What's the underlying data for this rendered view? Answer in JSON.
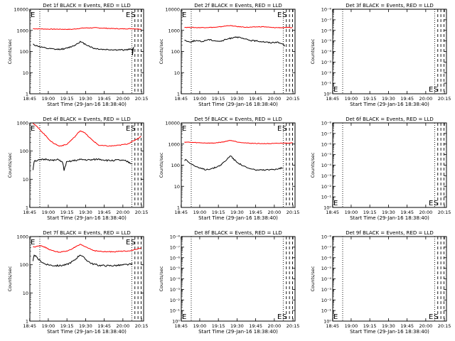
{
  "figure": {
    "xlabel": "Start Time (29-Jan-16 18:38:40)",
    "ylabel": "Counts/sec",
    "x_ticks": [
      "18:45",
      "19:00",
      "19:15",
      "19:30",
      "19:45",
      "20:00",
      "20:15"
    ],
    "colors": {
      "events": "#000000",
      "lld": "#ff0000"
    }
  },
  "chart_data": [
    {
      "type": "line",
      "title": "Det 1f BLACK = Events, RED = LLD",
      "scale": "log",
      "yticks": [
        "1",
        "10",
        "100",
        "1000",
        "10000"
      ],
      "ylim": [
        1,
        10000
      ],
      "xlim_min": [
        6.5,
        98
      ],
      "markers": {
        "E_at_min": 6.5,
        "S_at_min": 90,
        "dotted_min": [
          14.5,
          88.5
        ],
        "dashed_min": [
          91,
          93.5,
          96
        ]
      },
      "series": [
        {
          "color": "red",
          "points": [
            [
              9,
              1200
            ],
            [
              20,
              1150
            ],
            [
              40,
              1120
            ],
            [
              50,
              1300
            ],
            [
              60,
              1320
            ],
            [
              70,
              1240
            ],
            [
              80,
              1180
            ],
            [
              89,
              1200
            ],
            [
              96,
              1150
            ]
          ]
        },
        {
          "color": "black",
          "points": [
            [
              9,
              220
            ],
            [
              12,
              185
            ],
            [
              20,
              140
            ],
            [
              28,
              125
            ],
            [
              35,
              135
            ],
            [
              42,
              190
            ],
            [
              47,
              290
            ],
            [
              52,
              210
            ],
            [
              58,
              140
            ],
            [
              65,
              125
            ],
            [
              75,
              120
            ],
            [
              82,
              118
            ],
            [
              89,
              130
            ],
            [
              89,
              70
            ],
            [
              90,
              165
            ]
          ]
        }
      ]
    },
    {
      "type": "line",
      "title": "Det 2f BLACK = Events, RED = LLD",
      "scale": "log",
      "yticks": [
        "1",
        "10",
        "100",
        "1000",
        "10000"
      ],
      "ylim": [
        1,
        10000
      ],
      "xlim_min": [
        6.5,
        98
      ],
      "markers": {
        "E_at_min": 6.5,
        "S_at_min": 90,
        "dotted_min": [
          14.5,
          88.5
        ],
        "dashed_min": [
          91,
          93.5,
          96
        ]
      },
      "series": [
        {
          "color": "red",
          "points": [
            [
              9,
              1400
            ],
            [
              20,
              1350
            ],
            [
              35,
              1400
            ],
            [
              45,
              1700
            ],
            [
              52,
              1500
            ],
            [
              60,
              1400
            ],
            [
              72,
              1500
            ],
            [
              80,
              1350
            ],
            [
              89,
              1350
            ],
            [
              96,
              1350
            ]
          ]
        },
        {
          "color": "black",
          "points": [
            [
              9,
              350
            ],
            [
              13,
              280
            ],
            [
              18,
              330
            ],
            [
              23,
              290
            ],
            [
              28,
              370
            ],
            [
              33,
              330
            ],
            [
              38,
              300
            ],
            [
              43,
              380
            ],
            [
              46,
              420
            ],
            [
              50,
              500
            ],
            [
              54,
              440
            ],
            [
              58,
              380
            ],
            [
              63,
              330
            ],
            [
              68,
              310
            ],
            [
              73,
              290
            ],
            [
              78,
              260
            ],
            [
              83,
              280
            ],
            [
              88,
              230
            ],
            [
              90,
              180
            ]
          ]
        }
      ]
    },
    {
      "type": "line",
      "title": "Det 3f BLACK = Events, RED = LLD",
      "scale": "log",
      "yticks": [
        "10⁰",
        "10⁻¹",
        "10⁻²",
        "10⁻³",
        "10⁻⁴",
        "10⁻⁵",
        "10⁻⁶",
        "10⁻⁷",
        "10⁻⁸"
      ],
      "ylim": [
        1e-08,
        1
      ],
      "xlim_min": [
        6.5,
        98
      ],
      "markers": {
        "E_at_min": 6.5,
        "S_at_min": 90,
        "dotted_min": [
          14.5,
          88.5
        ],
        "dashed_min": [
          91,
          93.5,
          96
        ]
      },
      "series": []
    },
    {
      "type": "line",
      "title": "Det 4f BLACK = Events, RED = LLD",
      "scale": "log",
      "yticks": [
        "1",
        "10",
        "100",
        "1000"
      ],
      "ylim": [
        1,
        1000
      ],
      "xlim_min": [
        6.5,
        98
      ],
      "markers": {
        "E_at_min": 6.5,
        "S_at_min": 90,
        "dotted_min": [
          14.5,
          88.5
        ],
        "dashed_min": [
          91,
          93.5,
          96
        ]
      },
      "series": [
        {
          "color": "red",
          "points": [
            [
              9,
              1000
            ],
            [
              12,
              750
            ],
            [
              18,
              400
            ],
            [
              24,
              210
            ],
            [
              30,
              150
            ],
            [
              36,
              170
            ],
            [
              42,
              300
            ],
            [
              47,
              530
            ],
            [
              50,
              470
            ],
            [
              56,
              260
            ],
            [
              62,
              160
            ],
            [
              70,
              150
            ],
            [
              78,
              160
            ],
            [
              85,
              180
            ],
            [
              90,
              230
            ],
            [
              96,
              330
            ]
          ]
        },
        {
          "color": "black",
          "points": [
            [
              9,
              22
            ],
            [
              10,
              45
            ],
            [
              15,
              48
            ],
            [
              20,
              52
            ],
            [
              25,
              46
            ],
            [
              30,
              50
            ],
            [
              33,
              38
            ],
            [
              34,
              21
            ],
            [
              36,
              40
            ],
            [
              42,
              46
            ],
            [
              48,
              50
            ],
            [
              55,
              48
            ],
            [
              62,
              52
            ],
            [
              70,
              46
            ],
            [
              78,
              48
            ],
            [
              84,
              44
            ],
            [
              89,
              35
            ]
          ]
        }
      ]
    },
    {
      "type": "line",
      "title": "Det 5f BLACK = Events, RED = LLD",
      "scale": "log",
      "yticks": [
        "1",
        "10",
        "100",
        "1000",
        "10000"
      ],
      "ylim": [
        1,
        10000
      ],
      "xlim_min": [
        6.5,
        98
      ],
      "markers": {
        "E_at_min": 6.5,
        "S_at_min": 90,
        "dotted_min": [
          14.5,
          88.5
        ],
        "dashed_min": [
          91,
          93.5,
          96
        ]
      },
      "series": [
        {
          "color": "red",
          "points": [
            [
              9,
              1250
            ],
            [
              20,
              1150
            ],
            [
              32,
              1100
            ],
            [
              40,
              1250
            ],
            [
              46,
              1500
            ],
            [
              52,
              1250
            ],
            [
              60,
              1100
            ],
            [
              70,
              1050
            ],
            [
              80,
              1050
            ],
            [
              89,
              1100
            ],
            [
              96,
              1150
            ]
          ]
        },
        {
          "color": "black",
          "points": [
            [
              9,
              160
            ],
            [
              10,
              190
            ],
            [
              14,
              120
            ],
            [
              20,
              75
            ],
            [
              26,
              62
            ],
            [
              32,
              70
            ],
            [
              38,
              100
            ],
            [
              43,
              180
            ],
            [
              46,
              290
            ],
            [
              49,
              180
            ],
            [
              54,
              110
            ],
            [
              60,
              72
            ],
            [
              66,
              60
            ],
            [
              72,
              58
            ],
            [
              78,
              60
            ],
            [
              84,
              68
            ],
            [
              88,
              75
            ]
          ]
        }
      ]
    },
    {
      "type": "line",
      "title": "Det 6f BLACK = Events, RED = LLD",
      "scale": "log",
      "yticks": [
        "10⁰",
        "10⁻¹",
        "10⁻²",
        "10⁻³",
        "10⁻⁴",
        "10⁻⁵",
        "10⁻⁶",
        "10⁻⁷",
        "10⁻⁸"
      ],
      "ylim": [
        1e-08,
        1
      ],
      "xlim_min": [
        6.5,
        98
      ],
      "markers": {
        "E_at_min": 6.5,
        "S_at_min": 90,
        "dotted_min": [
          14.5,
          88.5
        ],
        "dashed_min": [
          91,
          93.5,
          96
        ]
      },
      "series": []
    },
    {
      "type": "line",
      "title": "Det 7f BLACK = Events, RED = LLD",
      "scale": "log",
      "yticks": [
        "1",
        "10",
        "100",
        "1000"
      ],
      "ylim": [
        1,
        1000
      ],
      "xlim_min": [
        6.5,
        98
      ],
      "markers": {
        "E_at_min": 6.5,
        "S_at_min": 90,
        "dotted_min": [
          14.5,
          88.5
        ],
        "dashed_min": [
          91,
          93.5,
          96
        ]
      },
      "series": [
        {
          "color": "red",
          "points": [
            [
              9,
              420
            ],
            [
              14,
              480
            ],
            [
              18,
              430
            ],
            [
              24,
              320
            ],
            [
              30,
              280
            ],
            [
              36,
              300
            ],
            [
              42,
              400
            ],
            [
              47,
              520
            ],
            [
              52,
              420
            ],
            [
              58,
              320
            ],
            [
              65,
              290
            ],
            [
              72,
              290
            ],
            [
              80,
              300
            ],
            [
              88,
              320
            ],
            [
              93,
              360
            ],
            [
              96,
              400
            ]
          ]
        },
        {
          "color": "black",
          "points": [
            [
              9,
              130
            ],
            [
              10,
              230
            ],
            [
              13,
              160
            ],
            [
              18,
              110
            ],
            [
              24,
              95
            ],
            [
              30,
              92
            ],
            [
              36,
              100
            ],
            [
              42,
              140
            ],
            [
              47,
              230
            ],
            [
              51,
              160
            ],
            [
              56,
              110
            ],
            [
              62,
              95
            ],
            [
              70,
              92
            ],
            [
              78,
              95
            ],
            [
              84,
              100
            ],
            [
              89,
              105
            ]
          ]
        }
      ]
    },
    {
      "type": "line",
      "title": "Det 8f BLACK = Events, RED = LLD",
      "scale": "log",
      "yticks": [
        "10⁰",
        "10⁻¹",
        "10⁻²",
        "10⁻³",
        "10⁻⁴",
        "10⁻⁵",
        "10⁻⁶",
        "10⁻⁷",
        "10⁻⁸"
      ],
      "ylim": [
        1e-08,
        1
      ],
      "xlim_min": [
        6.5,
        98
      ],
      "markers": {
        "E_at_min": 6.5,
        "S_at_min": 90,
        "dotted_min": [
          14.5,
          88.5
        ],
        "dashed_min": [
          91,
          93.5,
          96
        ]
      },
      "series": []
    },
    {
      "type": "line",
      "title": "Det 9f BLACK = Events, RED = LLD",
      "scale": "log",
      "yticks": [
        "10⁰",
        "10⁻¹",
        "10⁻²",
        "10⁻³",
        "10⁻⁴",
        "10⁻⁵",
        "10⁻⁶",
        "10⁻⁷",
        "10⁻⁸"
      ],
      "ylim": [
        1e-08,
        1
      ],
      "xlim_min": [
        6.5,
        98
      ],
      "markers": {
        "E_at_min": 6.5,
        "S_at_min": 90,
        "dotted_min": [
          14.5,
          88.5
        ],
        "dashed_min": [
          91,
          93.5,
          96
        ]
      },
      "series": []
    }
  ]
}
